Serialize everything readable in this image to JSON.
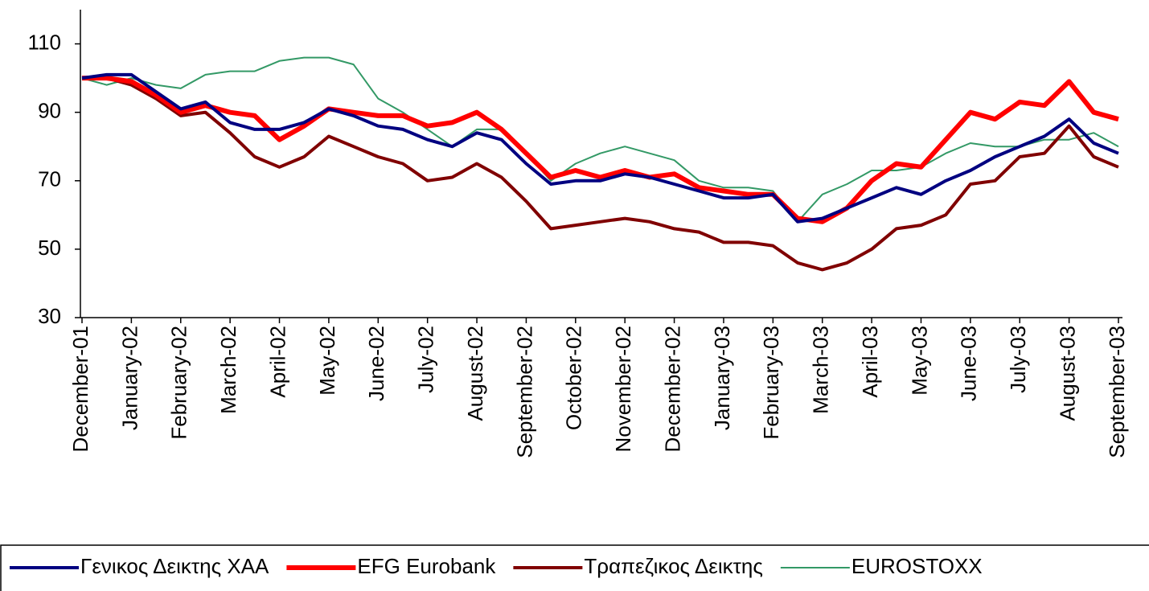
{
  "chart_data": {
    "type": "line",
    "categories": [
      "December-01",
      null,
      "January-02",
      null,
      "February-02",
      null,
      "March-02",
      null,
      "April-02",
      null,
      "May-02",
      null,
      "June-02",
      null,
      "July-02",
      null,
      "August-02",
      null,
      "September-02",
      null,
      "October-02",
      null,
      "November-02",
      null,
      "December-02",
      null,
      "January-03",
      null,
      "February-03",
      null,
      "March-03",
      null,
      "April-03",
      null,
      "May-03",
      null,
      "June-03",
      null,
      "July-03",
      null,
      "August-03",
      null,
      "September-03"
    ],
    "series": [
      {
        "name": "Γενικος Δεικτης ΧΑΑ",
        "color": "#000080",
        "width": 4,
        "values": [
          100,
          101,
          101,
          96,
          91,
          93,
          87,
          85,
          85,
          87,
          91,
          89,
          86,
          85,
          82,
          80,
          84,
          82,
          75,
          69,
          70,
          70,
          72,
          71,
          69,
          67,
          65,
          65,
          66,
          58,
          59,
          62,
          65,
          68,
          66,
          70,
          73,
          77,
          80,
          83,
          88,
          81,
          78
        ]
      },
      {
        "name": "EFG Eurobank",
        "color": "#ff0000",
        "width": 6,
        "values": [
          100,
          100,
          99,
          95,
          90,
          92,
          90,
          89,
          82,
          86,
          91,
          90,
          89,
          89,
          86,
          87,
          90,
          85,
          78,
          71,
          73,
          71,
          73,
          71,
          72,
          68,
          67,
          66,
          66,
          59,
          58,
          62,
          70,
          75,
          74,
          82,
          90,
          88,
          93,
          92,
          99,
          90,
          88
        ]
      },
      {
        "name": "Τραπεζικος Δεικτης",
        "color": "#800000",
        "width": 4,
        "values": [
          100,
          100,
          98,
          94,
          89,
          90,
          84,
          77,
          74,
          77,
          83,
          80,
          77,
          75,
          70,
          71,
          75,
          71,
          64,
          56,
          57,
          58,
          59,
          58,
          56,
          55,
          52,
          52,
          51,
          46,
          44,
          46,
          50,
          56,
          57,
          60,
          69,
          70,
          77,
          78,
          86,
          77,
          74
        ]
      },
      {
        "name": "EUROSTOXX",
        "color": "#339966",
        "width": 2,
        "values": [
          100,
          98,
          100,
          98,
          97,
          101,
          102,
          102,
          105,
          106,
          106,
          104,
          94,
          90,
          85,
          80,
          85,
          85,
          78,
          70,
          75,
          78,
          80,
          78,
          76,
          70,
          68,
          68,
          67,
          58,
          66,
          69,
          73,
          73,
          74,
          78,
          81,
          80,
          80,
          82,
          82,
          84,
          80
        ]
      }
    ],
    "ylim": [
      30,
      120
    ],
    "yticks": [
      30,
      50,
      70,
      90,
      110
    ],
    "legend": "bottom"
  }
}
